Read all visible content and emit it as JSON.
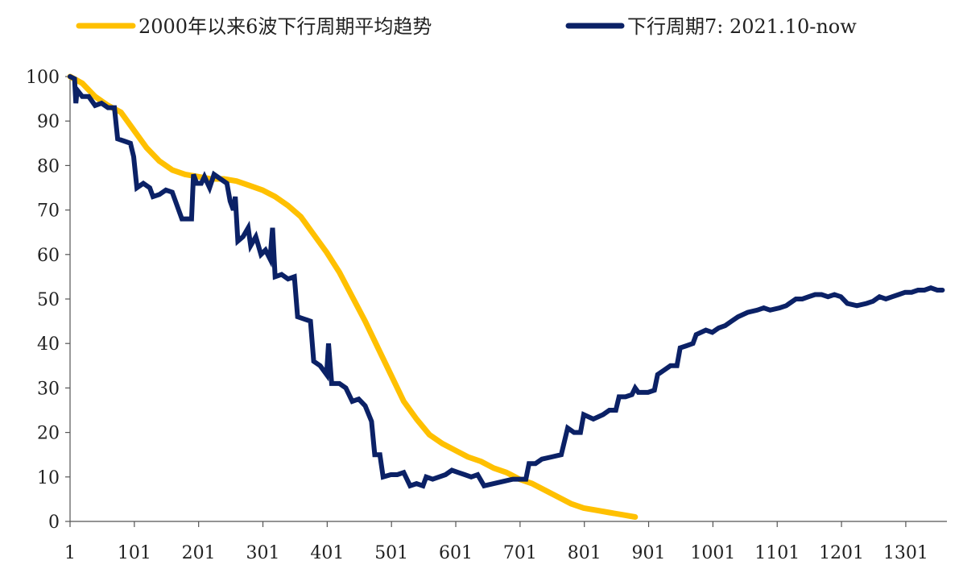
{
  "chart_data": {
    "type": "line",
    "title": "",
    "xlabel": "",
    "ylabel": "",
    "xlim": [
      1,
      1365
    ],
    "ylim": [
      0,
      100
    ],
    "x_ticks": [
      "1",
      "101",
      "201",
      "301",
      "401",
      "501",
      "601",
      "701",
      "801",
      "901",
      "1001",
      "1101",
      "1201",
      "1301"
    ],
    "x_tick_values": [
      1,
      101,
      201,
      301,
      401,
      501,
      601,
      701,
      801,
      901,
      1001,
      1101,
      1201,
      1301
    ],
    "y_ticks": [
      "0",
      "10",
      "20",
      "30",
      "40",
      "50",
      "60",
      "70",
      "80",
      "90",
      "100"
    ],
    "y_tick_values": [
      0,
      10,
      20,
      30,
      40,
      50,
      60,
      70,
      80,
      90,
      100
    ],
    "grid": false,
    "legend_position": "top",
    "series": [
      {
        "name": "2000年以来6波下行周期平均趋势",
        "color": "#FFC000",
        "points": [
          [
            1,
            100
          ],
          [
            20,
            98.5
          ],
          [
            40,
            95.5
          ],
          [
            60,
            93.5
          ],
          [
            80,
            92
          ],
          [
            100,
            88
          ],
          [
            120,
            84
          ],
          [
            140,
            81
          ],
          [
            160,
            79
          ],
          [
            180,
            78
          ],
          [
            200,
            77.5
          ],
          [
            220,
            77
          ],
          [
            240,
            77
          ],
          [
            260,
            76.5
          ],
          [
            280,
            75.5
          ],
          [
            300,
            74.5
          ],
          [
            320,
            73
          ],
          [
            340,
            71
          ],
          [
            360,
            68.5
          ],
          [
            380,
            64.5
          ],
          [
            400,
            60.5
          ],
          [
            420,
            56
          ],
          [
            440,
            50.5
          ],
          [
            460,
            45
          ],
          [
            480,
            39
          ],
          [
            500,
            33
          ],
          [
            520,
            27
          ],
          [
            540,
            23
          ],
          [
            560,
            19.5
          ],
          [
            580,
            17.5
          ],
          [
            600,
            16
          ],
          [
            620,
            14.5
          ],
          [
            640,
            13.5
          ],
          [
            660,
            12
          ],
          [
            680,
            11
          ],
          [
            700,
            9.5
          ],
          [
            720,
            8.5
          ],
          [
            740,
            7
          ],
          [
            760,
            5.5
          ],
          [
            780,
            4
          ],
          [
            800,
            3
          ],
          [
            820,
            2.5
          ],
          [
            840,
            2
          ],
          [
            860,
            1.5
          ],
          [
            880,
            1
          ]
        ]
      },
      {
        "name": "下行周期7: 2021.10-now",
        "color": "#0B2166",
        "points": [
          [
            1,
            100
          ],
          [
            8,
            99.5
          ],
          [
            10,
            94
          ],
          [
            12,
            97
          ],
          [
            20,
            95.5
          ],
          [
            30,
            95.5
          ],
          [
            40,
            93.5
          ],
          [
            50,
            94
          ],
          [
            60,
            93
          ],
          [
            70,
            93
          ],
          [
            75,
            86
          ],
          [
            85,
            85.5
          ],
          [
            95,
            85
          ],
          [
            100,
            82
          ],
          [
            105,
            75
          ],
          [
            115,
            76
          ],
          [
            125,
            75
          ],
          [
            130,
            73
          ],
          [
            140,
            73.5
          ],
          [
            150,
            74.5
          ],
          [
            160,
            74
          ],
          [
            170,
            70
          ],
          [
            175,
            68
          ],
          [
            185,
            68
          ],
          [
            190,
            68
          ],
          [
            193,
            78
          ],
          [
            198,
            76
          ],
          [
            205,
            76
          ],
          [
            210,
            77.5
          ],
          [
            218,
            75
          ],
          [
            225,
            78
          ],
          [
            235,
            77
          ],
          [
            245,
            76
          ],
          [
            250,
            72
          ],
          [
            255,
            70
          ],
          [
            258,
            73
          ],
          [
            262,
            63
          ],
          [
            270,
            64
          ],
          [
            278,
            66
          ],
          [
            282,
            62
          ],
          [
            290,
            64
          ],
          [
            298,
            60
          ],
          [
            305,
            61
          ],
          [
            312,
            59
          ],
          [
            316,
            66
          ],
          [
            320,
            55
          ],
          [
            330,
            55.5
          ],
          [
            340,
            54.5
          ],
          [
            350,
            55
          ],
          [
            355,
            46
          ],
          [
            365,
            45.5
          ],
          [
            375,
            45
          ],
          [
            380,
            36
          ],
          [
            390,
            35
          ],
          [
            400,
            33
          ],
          [
            403,
            40
          ],
          [
            408,
            31
          ],
          [
            420,
            31
          ],
          [
            430,
            30
          ],
          [
            440,
            27
          ],
          [
            450,
            27.5
          ],
          [
            460,
            26
          ],
          [
            470,
            22.5
          ],
          [
            475,
            15
          ],
          [
            483,
            15
          ],
          [
            488,
            10
          ],
          [
            500,
            10.5
          ],
          [
            510,
            10.5
          ],
          [
            520,
            11
          ],
          [
            530,
            8
          ],
          [
            540,
            8.5
          ],
          [
            550,
            8
          ],
          [
            555,
            10
          ],
          [
            565,
            9.5
          ],
          [
            575,
            10
          ],
          [
            585,
            10.5
          ],
          [
            595,
            11.5
          ],
          [
            605,
            11
          ],
          [
            615,
            10.5
          ],
          [
            625,
            10
          ],
          [
            635,
            10.5
          ],
          [
            645,
            8
          ],
          [
            660,
            8.5
          ],
          [
            675,
            9
          ],
          [
            690,
            9.5
          ],
          [
            710,
            9.5
          ],
          [
            715,
            13
          ],
          [
            725,
            13
          ],
          [
            735,
            14
          ],
          [
            750,
            14.5
          ],
          [
            765,
            15
          ],
          [
            775,
            21
          ],
          [
            785,
            20
          ],
          [
            795,
            20
          ],
          [
            800,
            24
          ],
          [
            815,
            23
          ],
          [
            830,
            24
          ],
          [
            840,
            25
          ],
          [
            850,
            25
          ],
          [
            855,
            28
          ],
          [
            865,
            28
          ],
          [
            875,
            28.5
          ],
          [
            880,
            30
          ],
          [
            885,
            29
          ],
          [
            900,
            29
          ],
          [
            910,
            29.5
          ],
          [
            915,
            33
          ],
          [
            925,
            34
          ],
          [
            935,
            35
          ],
          [
            945,
            35
          ],
          [
            950,
            39
          ],
          [
            960,
            39.5
          ],
          [
            970,
            40
          ],
          [
            975,
            42
          ],
          [
            990,
            43
          ],
          [
            1000,
            42.5
          ],
          [
            1010,
            43.5
          ],
          [
            1020,
            44
          ],
          [
            1030,
            45
          ],
          [
            1040,
            46
          ],
          [
            1055,
            47
          ],
          [
            1070,
            47.5
          ],
          [
            1080,
            48
          ],
          [
            1090,
            47.5
          ],
          [
            1105,
            48
          ],
          [
            1115,
            48.5
          ],
          [
            1120,
            49
          ],
          [
            1130,
            50
          ],
          [
            1140,
            50
          ],
          [
            1150,
            50.5
          ],
          [
            1160,
            51
          ],
          [
            1170,
            51
          ],
          [
            1180,
            50.5
          ],
          [
            1190,
            51
          ],
          [
            1200,
            50.5
          ],
          [
            1210,
            49
          ],
          [
            1225,
            48.5
          ],
          [
            1240,
            49
          ],
          [
            1250,
            49.5
          ],
          [
            1260,
            50.5
          ],
          [
            1270,
            50
          ],
          [
            1280,
            50.5
          ],
          [
            1290,
            51
          ],
          [
            1300,
            51.5
          ],
          [
            1310,
            51.5
          ],
          [
            1320,
            52
          ],
          [
            1330,
            52
          ],
          [
            1340,
            52.5
          ],
          [
            1350,
            52
          ],
          [
            1358,
            52
          ]
        ]
      }
    ]
  }
}
